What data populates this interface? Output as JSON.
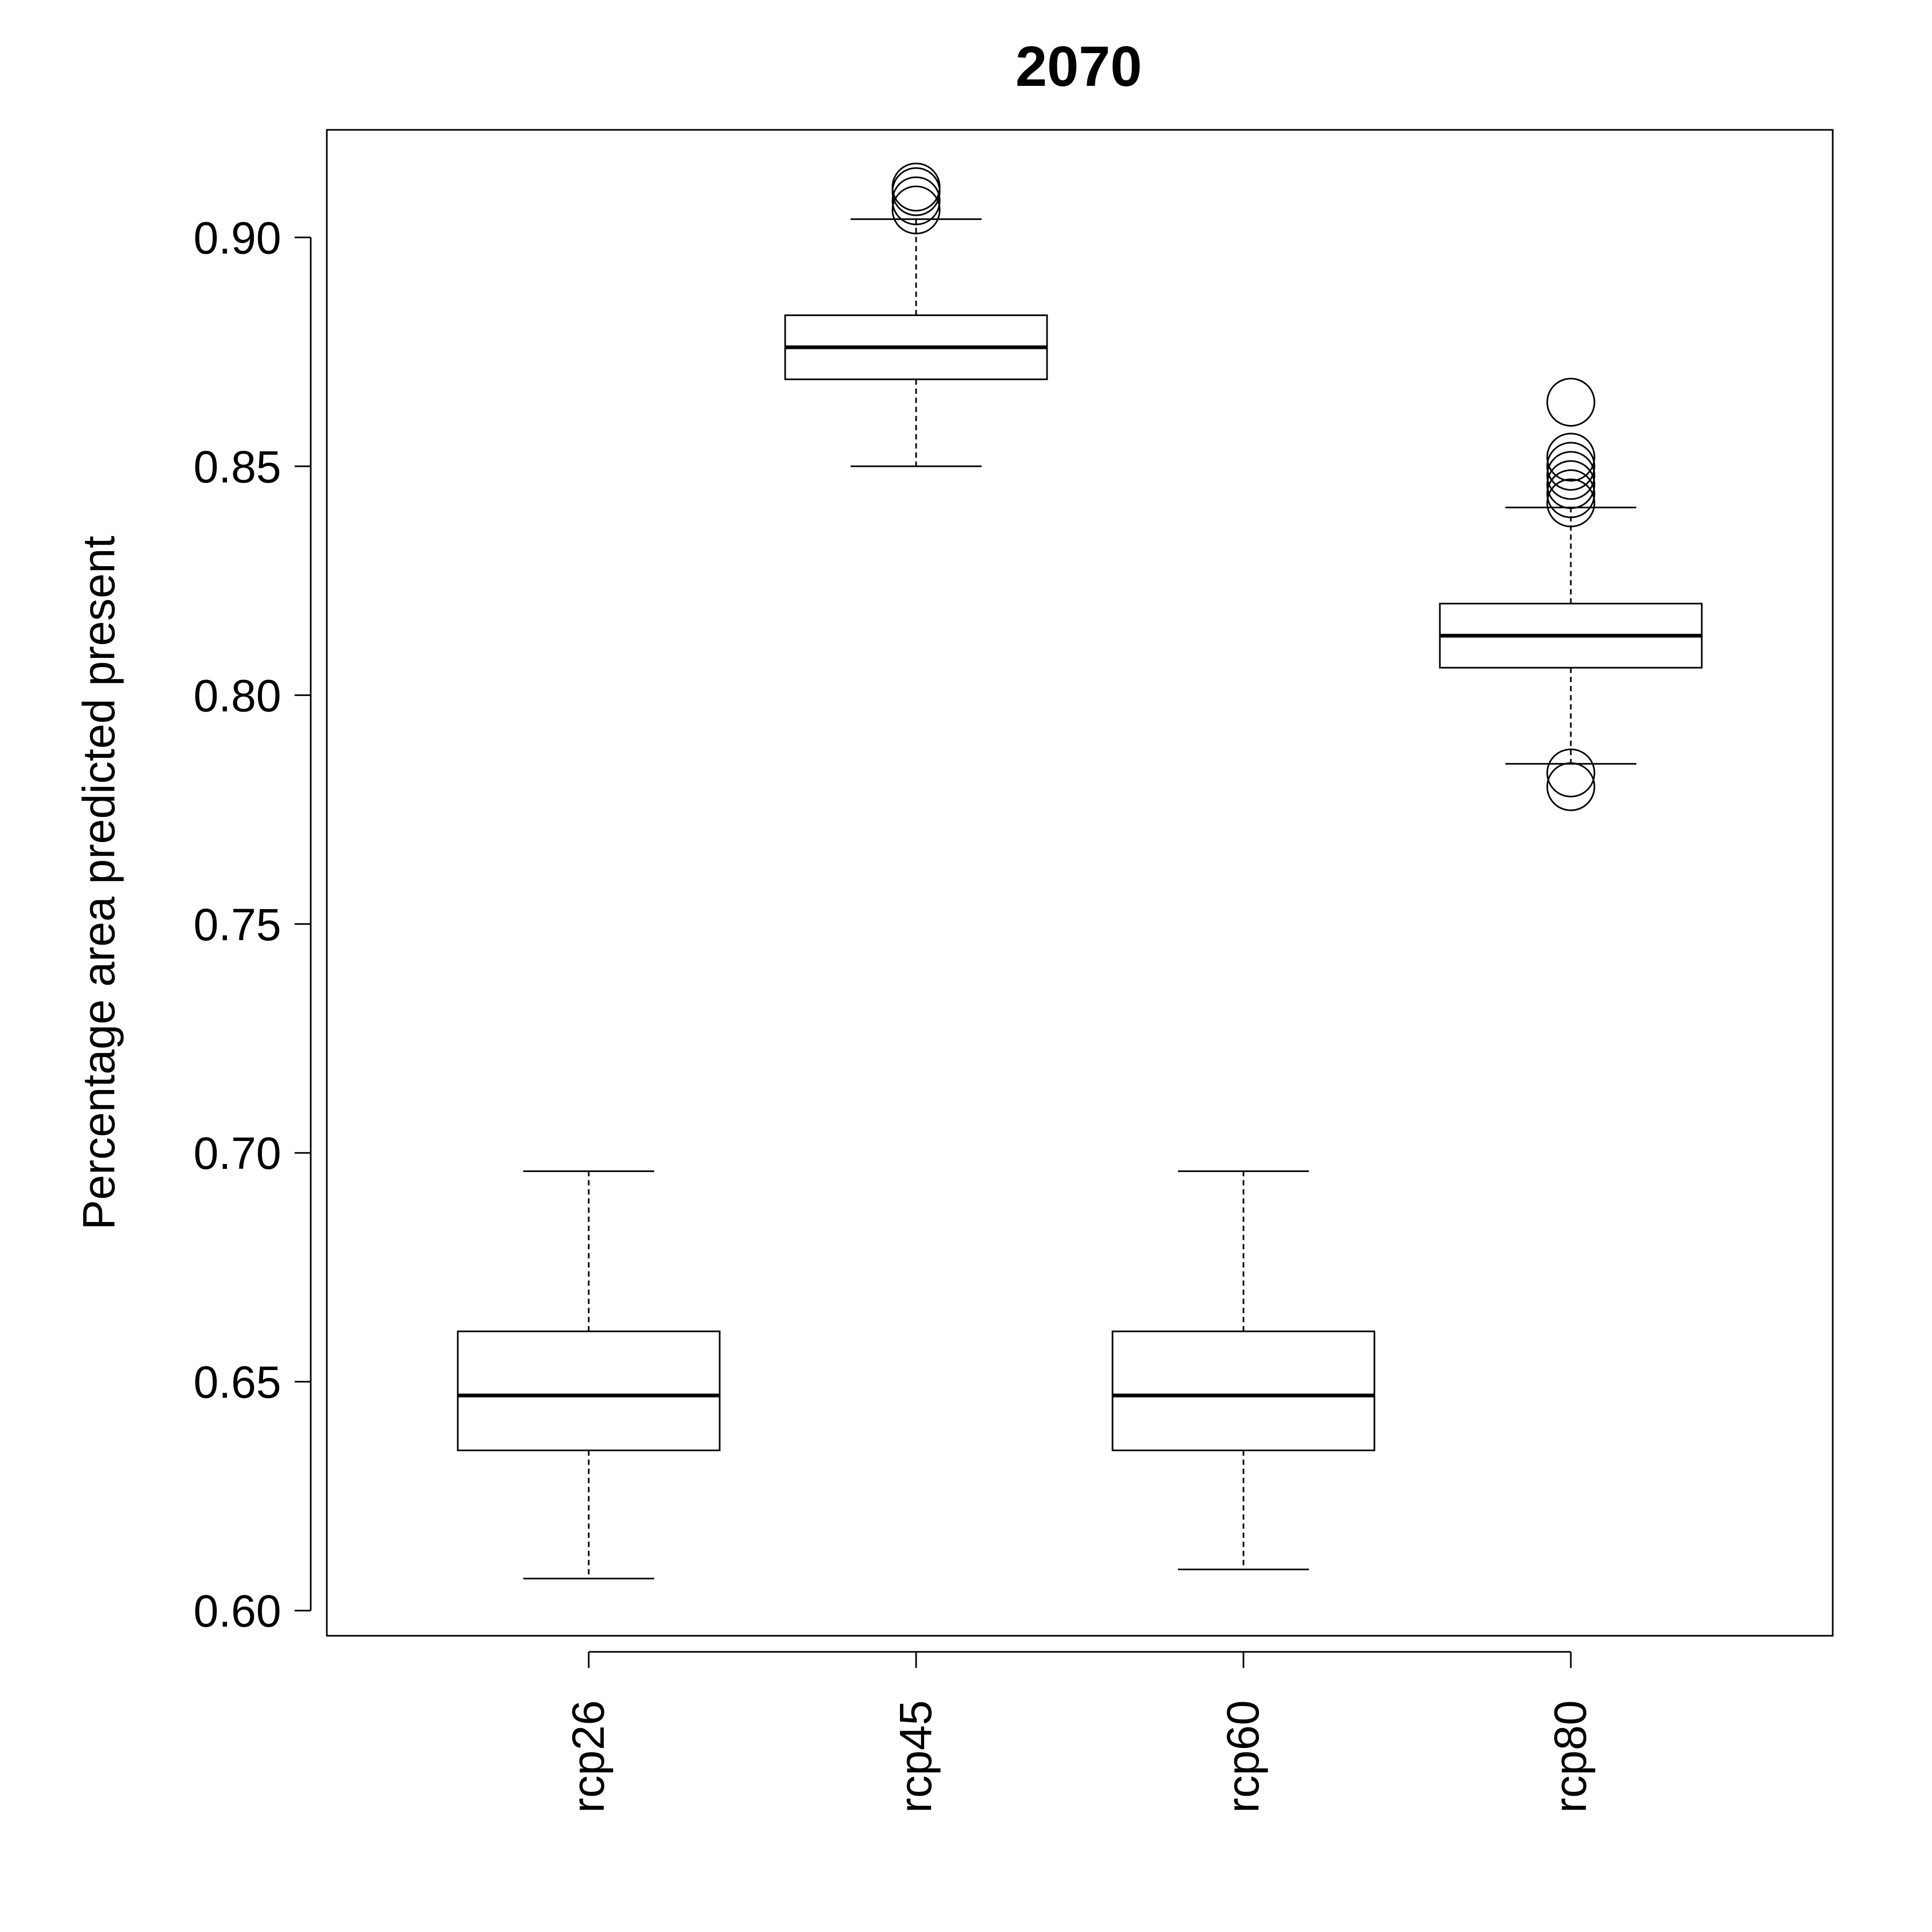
{
  "chart_data": {
    "type": "box",
    "title": "2070",
    "xlabel": "",
    "ylabel": "Percentage area predicted present",
    "ylim": [
      0.5945,
      0.9235
    ],
    "yticks": [
      "0.60",
      "0.65",
      "0.70",
      "0.75",
      "0.80",
      "0.85",
      "0.90"
    ],
    "grid": false,
    "categories": [
      "rcp26",
      "rcp45",
      "rcp60",
      "rcp80"
    ],
    "boxes": [
      {
        "name": "rcp26",
        "min": 0.607,
        "q1": 0.635,
        "median": 0.647,
        "q3": 0.661,
        "max": 0.696,
        "outliers": []
      },
      {
        "name": "rcp45",
        "min": 0.85,
        "q1": 0.869,
        "median": 0.876,
        "q3": 0.883,
        "max": 0.904,
        "outliers": [
          0.906,
          0.908,
          0.91,
          0.911
        ]
      },
      {
        "name": "rcp60",
        "min": 0.609,
        "q1": 0.635,
        "median": 0.647,
        "q3": 0.661,
        "max": 0.696,
        "outliers": []
      },
      {
        "name": "rcp80",
        "min": 0.785,
        "q1": 0.806,
        "median": 0.813,
        "q3": 0.82,
        "max": 0.841,
        "outliers": [
          0.864,
          0.852,
          0.85,
          0.848,
          0.846,
          0.844,
          0.842,
          0.783,
          0.78
        ]
      }
    ]
  }
}
